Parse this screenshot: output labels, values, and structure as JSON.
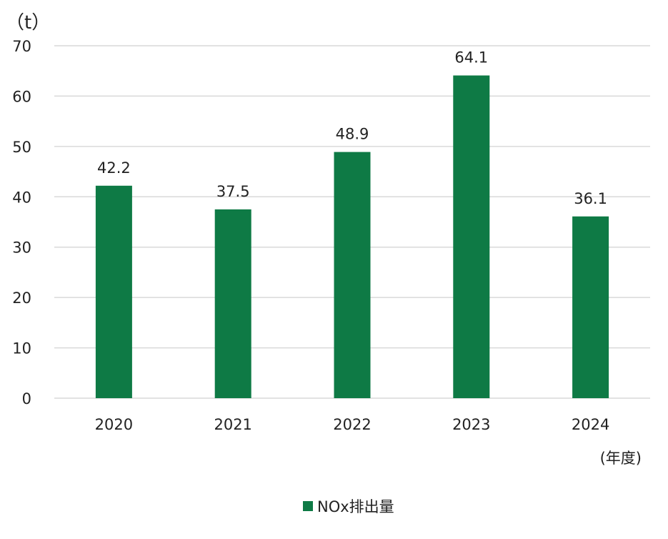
{
  "chart_data": {
    "type": "bar",
    "categories": [
      "2020",
      "2021",
      "2022",
      "2023",
      "2024"
    ],
    "series": [
      {
        "name": "NOx排出量",
        "values": [
          42.2,
          37.5,
          48.9,
          64.1,
          36.1
        ],
        "color": "#0e7a45"
      }
    ],
    "data_labels": [
      "42.2",
      "37.5",
      "48.9",
      "64.1",
      "36.1"
    ],
    "ylabel": "（t）",
    "xlabel": "(年度)",
    "ylim": [
      0,
      70
    ],
    "yticks": [
      0,
      10,
      20,
      30,
      40,
      50,
      60,
      70
    ],
    "grid": true,
    "legend_position": "bottom"
  }
}
